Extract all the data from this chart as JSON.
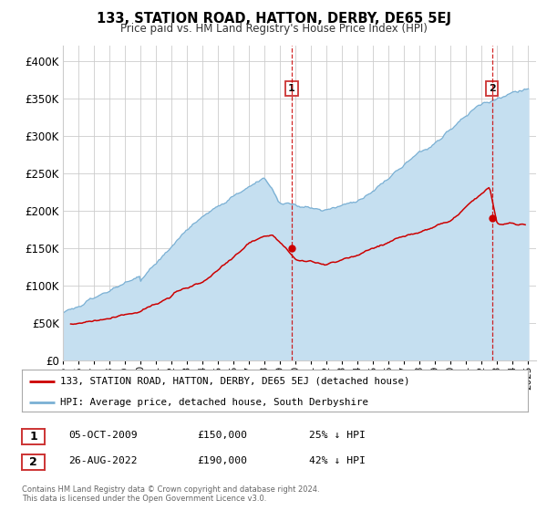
{
  "title": "133, STATION ROAD, HATTON, DERBY, DE65 5EJ",
  "subtitle": "Price paid vs. HM Land Registry's House Price Index (HPI)",
  "background_color": "#ffffff",
  "plot_bg_color": "#ffffff",
  "grid_color": "#cccccc",
  "hpi_color": "#7ab0d4",
  "hpi_fill_color": "#c5dff0",
  "price_color": "#cc0000",
  "marker1_date": 2009.75,
  "marker1_price": 150000,
  "marker1_label": "1",
  "marker1_text": "05-OCT-2009",
  "marker1_amount": "£150,000",
  "marker1_pct": "25% ↓ HPI",
  "marker2_date": 2022.65,
  "marker2_price": 190000,
  "marker2_label": "2",
  "marker2_text": "26-AUG-2022",
  "marker2_amount": "£190,000",
  "marker2_pct": "42% ↓ HPI",
  "legend_label1": "133, STATION ROAD, HATTON, DERBY, DE65 5EJ (detached house)",
  "legend_label2": "HPI: Average price, detached house, South Derbyshire",
  "footer1": "Contains HM Land Registry data © Crown copyright and database right 2024.",
  "footer2": "This data is licensed under the Open Government Licence v3.0.",
  "ylim": [
    0,
    420000
  ],
  "xlim_start": 1995.0,
  "xlim_end": 2025.5
}
